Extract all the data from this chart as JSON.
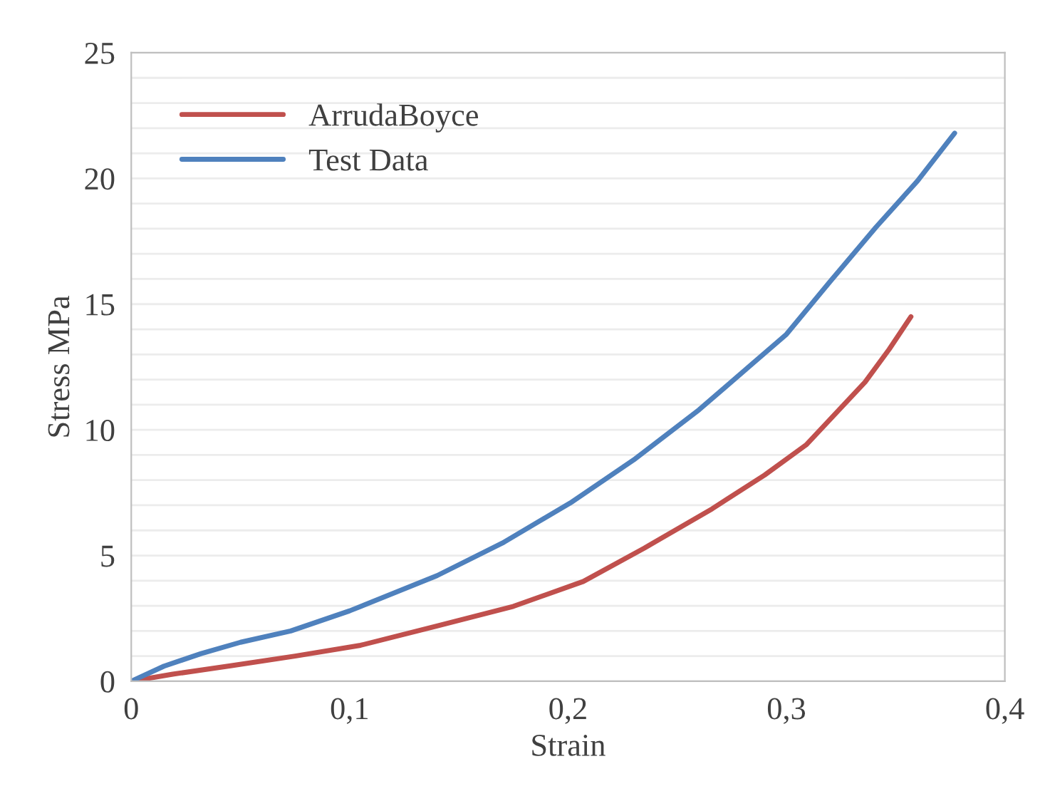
{
  "chart_data": {
    "type": "line",
    "xlabel": "Strain",
    "ylabel": "Stress MPa",
    "xlim": [
      0,
      0.4
    ],
    "ylim": [
      0,
      25
    ],
    "xticks": [
      {
        "value": 0,
        "label": "0"
      },
      {
        "value": 0.1,
        "label": "0,1"
      },
      {
        "value": 0.2,
        "label": "0,2"
      },
      {
        "value": 0.3,
        "label": "0,3"
      },
      {
        "value": 0.4,
        "label": "0,4"
      }
    ],
    "yticks": [
      0,
      {
        "value": 1,
        "label": null
      },
      {
        "value": 2,
        "label": null
      },
      {
        "value": 3,
        "label": null
      },
      {
        "value": 4,
        "label": null
      },
      5,
      {
        "value": 6,
        "label": null
      },
      {
        "value": 7,
        "label": null
      },
      {
        "value": 8,
        "label": null
      },
      {
        "value": 9,
        "label": null
      },
      10,
      {
        "value": 11,
        "label": null
      },
      {
        "value": 12,
        "label": null
      },
      {
        "value": 13,
        "label": null
      },
      {
        "value": 14,
        "label": null
      },
      15,
      {
        "value": 16,
        "label": null
      },
      {
        "value": 17,
        "label": null
      },
      {
        "value": 18,
        "label": null
      },
      {
        "value": 19,
        "label": null
      },
      20,
      {
        "value": 21,
        "label": null
      },
      {
        "value": 22,
        "label": null
      },
      {
        "value": 23,
        "label": null
      },
      {
        "value": 24,
        "label": null
      },
      25
    ],
    "grid": "y",
    "legend": "top left",
    "marker": "none",
    "line_style": "solid",
    "series": [
      {
        "name": "ArrudaBoyce",
        "color": "#c0504d",
        "x": [
          0,
          0.019,
          0.046,
          0.075,
          0.105,
          0.14,
          0.175,
          0.207,
          0.235,
          0.266,
          0.29,
          0.309,
          0.322,
          0.336,
          0.347,
          0.357
        ],
        "values": [
          0,
          0.28,
          0.62,
          1.0,
          1.43,
          2.2,
          2.98,
          3.97,
          5.3,
          6.86,
          8.2,
          9.4,
          10.6,
          11.9,
          13.2,
          14.5
        ]
      },
      {
        "name": "Test Data",
        "color": "#4f81bd",
        "x": [
          0,
          0.015,
          0.032,
          0.05,
          0.073,
          0.1,
          0.14,
          0.17,
          0.201,
          0.23,
          0.26,
          0.3,
          0.32,
          0.341,
          0.36,
          0.377
        ],
        "values": [
          0,
          0.6,
          1.1,
          1.55,
          2.0,
          2.8,
          4.2,
          5.5,
          7.09,
          8.8,
          10.8,
          13.8,
          15.9,
          18.06,
          19.9,
          21.8
        ]
      }
    ]
  }
}
